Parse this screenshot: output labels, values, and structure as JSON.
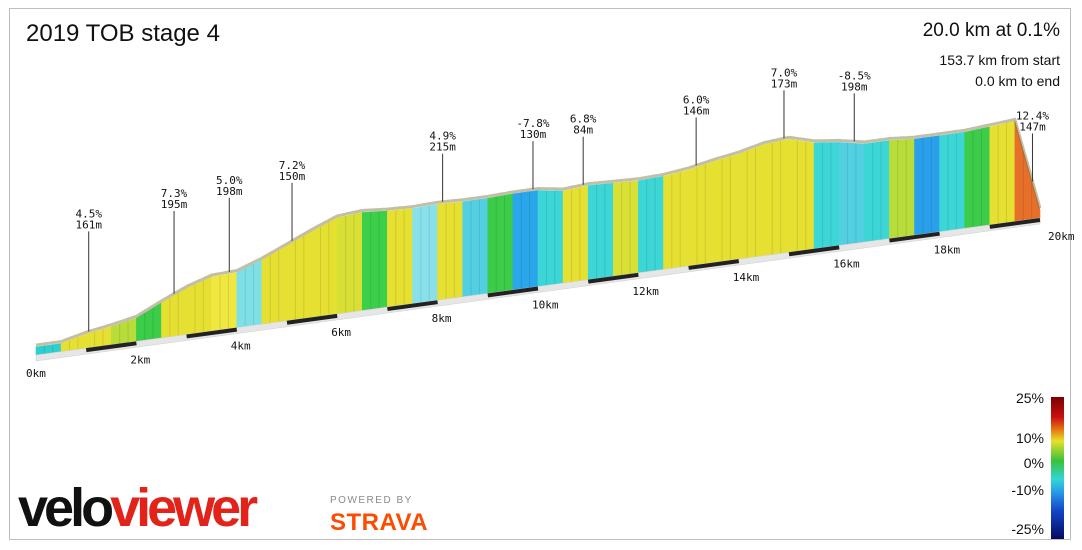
{
  "chart_data": {
    "type": "area",
    "title": "2019 TOB stage 4",
    "summary": "20.0 km at 0.1%",
    "from_start": "153.7 km from start",
    "to_end": "0.0 km to end",
    "x_unit": "km",
    "xlim": [
      0,
      20
    ],
    "x_ticks": [
      "0km",
      "2km",
      "4km",
      "6km",
      "8km",
      "10km",
      "12km",
      "14km",
      "16km",
      "18km",
      "20km"
    ],
    "elevation_profile": {
      "x_km": [
        0,
        0.5,
        1.0,
        1.5,
        2.0,
        2.5,
        3.0,
        3.5,
        4.0,
        4.5,
        5.0,
        5.5,
        6.0,
        6.5,
        7.0,
        7.5,
        8.0,
        8.5,
        9.0,
        9.5,
        10.0,
        10.5,
        11.0,
        11.5,
        12.0,
        12.5,
        13.0,
        13.5,
        14.0,
        14.5,
        15.0,
        15.5,
        16.0,
        16.5,
        17.0,
        17.5,
        18.0,
        18.5,
        19.0,
        19.5,
        20.0
      ],
      "elevation_m": [
        150,
        150,
        156,
        160,
        165,
        177,
        188,
        196,
        197,
        206,
        217,
        228,
        238,
        240,
        238,
        237,
        238,
        237,
        237,
        238,
        238,
        234,
        236,
        235,
        234,
        235,
        238,
        243,
        247,
        253,
        255,
        248,
        245,
        240,
        240,
        238,
        238,
        238,
        240,
        242,
        150
      ]
    },
    "gradient_colors": [
      "#2ecfcf",
      "#e6e032",
      "#e6e032",
      "#b8dc3a",
      "#3ccc4a",
      "#e6e032",
      "#e6e032",
      "#f0e840",
      "#7ee0e6",
      "#e6e032",
      "#e6e032",
      "#e6e032",
      "#d8e036",
      "#3cd04a",
      "#e6e032",
      "#8ae0ea",
      "#e6e032",
      "#52d0e2",
      "#3ccc4a",
      "#2aa6ea",
      "#3cd6d6",
      "#e6e032",
      "#3cd6d6",
      "#d8e036",
      "#3cd6d6",
      "#e6e032",
      "#e6e032",
      "#e6e032",
      "#e6e032",
      "#e6e032",
      "#e6e032",
      "#3cd6d6",
      "#52d0e2",
      "#3cd6d6",
      "#b8dc3a",
      "#2aa0ea",
      "#3cd6d6",
      "#3ccc4a",
      "#e6e032",
      "#e6702a"
    ],
    "annotations": [
      {
        "gradient": "4.5%",
        "elevation": "161m",
        "km": 1.05
      },
      {
        "gradient": "7.3%",
        "elevation": "195m",
        "km": 2.75
      },
      {
        "gradient": "5.0%",
        "elevation": "198m",
        "km": 3.85
      },
      {
        "gradient": "7.2%",
        "elevation": "150m",
        "km": 5.1
      },
      {
        "gradient": "4.9%",
        "elevation": "215m",
        "km": 8.1
      },
      {
        "gradient": "-7.8%",
        "elevation": "130m",
        "km": 9.9
      },
      {
        "gradient": "6.8%",
        "elevation": "84m",
        "km": 10.9
      },
      {
        "gradient": "6.0%",
        "elevation": "146m",
        "km": 13.15
      },
      {
        "gradient": "7.0%",
        "elevation": "173m",
        "km": 14.9
      },
      {
        "gradient": "-8.5%",
        "elevation": "198m",
        "km": 16.3
      },
      {
        "gradient": "12.4%",
        "elevation": "147m",
        "km": 19.85
      }
    ],
    "legend": {
      "title": "gradient",
      "labels": [
        "25%",
        "10%",
        "0%",
        "-10%",
        "-25%"
      ]
    }
  },
  "branding": {
    "logo_text": "veloviewer",
    "powered_by": "POWERED BY",
    "strava": "STRAVA",
    "logo_colors": {
      "velo": "#111111",
      "viewer": "#e2231a",
      "strava": "#fc4c02"
    }
  }
}
